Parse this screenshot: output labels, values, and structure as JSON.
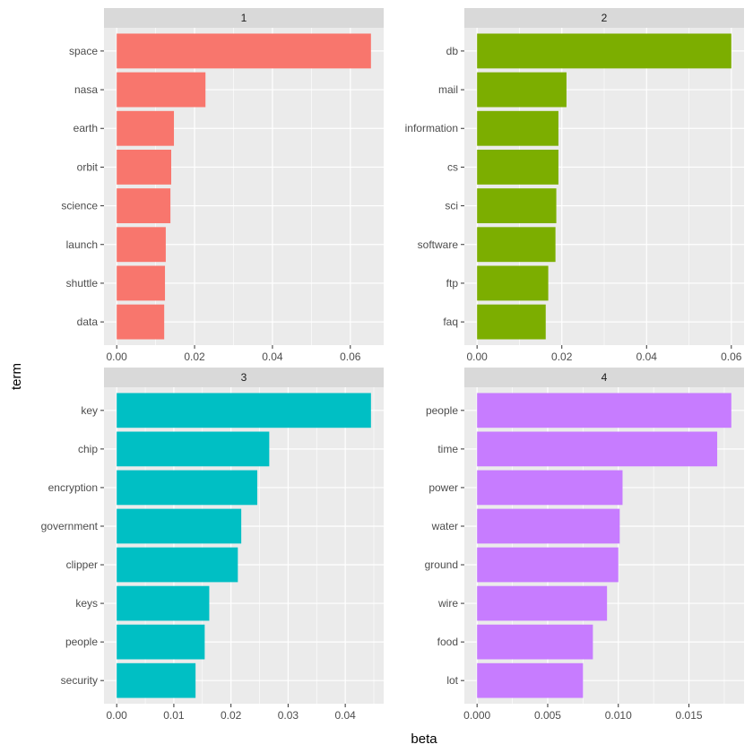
{
  "chart_data": {
    "type": "bar",
    "orientation": "horizontal",
    "facet_layout": "2x2, free scales",
    "xlabel": "beta",
    "ylabel": "term",
    "grid": true,
    "legend": "none",
    "panels": [
      {
        "strip": "1",
        "color": "#F8766D",
        "terms": [
          "space",
          "nasa",
          "earth",
          "orbit",
          "science",
          "launch",
          "shuttle",
          "data"
        ],
        "values": [
          0.0653,
          0.0228,
          0.0147,
          0.014,
          0.0138,
          0.0126,
          0.0124,
          0.0122
        ],
        "xticks": [
          0,
          0.02,
          0.04,
          0.06
        ],
        "xtick_labels": [
          "0.00",
          "0.02",
          "0.04",
          "0.06"
        ]
      },
      {
        "strip": "2",
        "color": "#7CAE00",
        "terms": [
          "db",
          "mail",
          "information",
          "cs",
          "sci",
          "software",
          "ftp",
          "faq"
        ],
        "values": [
          0.06,
          0.0211,
          0.0192,
          0.0192,
          0.0187,
          0.0185,
          0.0168,
          0.0162
        ],
        "xticks": [
          0,
          0.02,
          0.04,
          0.06
        ],
        "xtick_labels": [
          "0.00",
          "0.02",
          "0.04",
          "0.06"
        ]
      },
      {
        "strip": "3",
        "color": "#00BFC4",
        "terms": [
          "key",
          "chip",
          "encryption",
          "government",
          "clipper",
          "keys",
          "people",
          "security"
        ],
        "values": [
          0.0445,
          0.0267,
          0.0246,
          0.0218,
          0.0212,
          0.0162,
          0.0154,
          0.0138
        ],
        "xticks": [
          0,
          0.01,
          0.02,
          0.03,
          0.04
        ],
        "xtick_labels": [
          "0.00",
          "0.01",
          "0.02",
          "0.03",
          "0.04"
        ]
      },
      {
        "strip": "4",
        "color": "#C77CFF",
        "terms": [
          "people",
          "time",
          "power",
          "water",
          "ground",
          "wire",
          "food",
          "lot"
        ],
        "values": [
          0.018,
          0.017,
          0.0103,
          0.0101,
          0.01,
          0.0092,
          0.0082,
          0.0075
        ],
        "xticks": [
          0,
          0.005,
          0.01,
          0.015
        ],
        "xtick_labels": [
          "0.000",
          "0.005",
          "0.010",
          "0.015"
        ]
      }
    ]
  }
}
